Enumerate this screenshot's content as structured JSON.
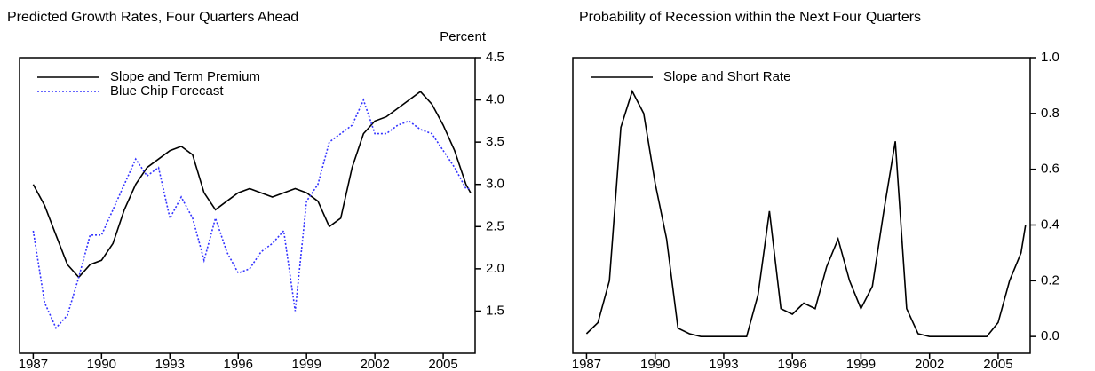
{
  "chart_data": [
    {
      "type": "line",
      "title": "Predicted Growth Rates, Four Quarters Ahead",
      "y_label": "Percent",
      "x": [
        1987.0,
        1987.5,
        1988.0,
        1988.5,
        1989.0,
        1989.5,
        1990.0,
        1990.5,
        1991.0,
        1991.5,
        1992.0,
        1992.5,
        1993.0,
        1993.5,
        1994.0,
        1994.5,
        1995.0,
        1995.5,
        1996.0,
        1996.5,
        1997.0,
        1997.5,
        1998.0,
        1998.5,
        1999.0,
        1999.5,
        2000.0,
        2000.5,
        2001.0,
        2001.5,
        2002.0,
        2002.5,
        2003.0,
        2003.5,
        2004.0,
        2004.5,
        2005.0,
        2005.5,
        2006.0,
        2006.2
      ],
      "series": [
        {
          "name": "Slope and Term Premium",
          "color": "#000000",
          "dash": "solid",
          "values": [
            3.0,
            2.75,
            2.4,
            2.05,
            1.9,
            2.05,
            2.1,
            2.3,
            2.7,
            3.0,
            3.2,
            3.3,
            3.4,
            3.45,
            3.35,
            2.9,
            2.7,
            2.8,
            2.9,
            2.95,
            2.9,
            2.85,
            2.9,
            2.95,
            2.9,
            2.8,
            2.5,
            2.6,
            3.2,
            3.6,
            3.75,
            3.8,
            3.9,
            4.0,
            4.1,
            3.95,
            3.7,
            3.4,
            3.0,
            2.9
          ]
        },
        {
          "name": "Blue Chip Forecast",
          "color": "#3333ff",
          "dash": "dotted",
          "values": [
            2.45,
            1.6,
            1.3,
            1.45,
            1.9,
            2.4,
            2.4,
            2.7,
            3.0,
            3.3,
            3.1,
            3.2,
            2.6,
            2.85,
            2.6,
            2.1,
            2.6,
            2.2,
            1.95,
            2.0,
            2.2,
            2.3,
            2.45,
            1.5,
            2.8,
            3.0,
            3.5,
            3.6,
            3.7,
            4.0,
            3.6,
            3.6,
            3.7,
            3.75,
            3.65,
            3.6,
            3.4,
            3.2,
            2.95,
            2.95
          ]
        }
      ],
      "xlim": [
        1986.4,
        2006.4
      ],
      "xticks": [
        1987,
        1990,
        1993,
        1996,
        1999,
        2002,
        2005
      ],
      "ylim": [
        1.0,
        4.5
      ],
      "yticks": [
        1.5,
        {
          "value": 2.0,
          "label": "2.0"
        },
        2.5,
        {
          "value": 3.0,
          "label": "3.0"
        },
        3.5,
        {
          "value": 4.0,
          "label": "4.0"
        },
        4.5
      ],
      "legend": "upper left"
    },
    {
      "type": "line",
      "title": "Probability of Recession within the Next Four Quarters",
      "x": [
        1987.0,
        1987.5,
        1988.0,
        1988.5,
        1989.0,
        1989.5,
        1990.0,
        1990.5,
        1991.0,
        1991.5,
        1992.0,
        1992.5,
        1993.0,
        1993.5,
        1994.0,
        1994.5,
        1995.0,
        1995.5,
        1996.0,
        1996.5,
        1997.0,
        1997.5,
        1998.0,
        1998.5,
        1999.0,
        1999.5,
        2000.0,
        2000.5,
        2001.0,
        2001.5,
        2002.0,
        2002.5,
        2003.0,
        2003.5,
        2004.0,
        2004.5,
        2005.0,
        2005.5,
        2006.0,
        2006.2
      ],
      "series": [
        {
          "name": "Slope and Short Rate",
          "color": "#000000",
          "dash": "solid",
          "values": [
            0.01,
            0.05,
            0.2,
            0.75,
            0.88,
            0.8,
            0.55,
            0.35,
            0.03,
            0.01,
            0.0,
            0.0,
            0.0,
            0.0,
            0.0,
            0.15,
            0.45,
            0.1,
            0.08,
            0.12,
            0.1,
            0.25,
            0.35,
            0.2,
            0.1,
            0.18,
            0.45,
            0.7,
            0.1,
            0.01,
            0.0,
            0.0,
            0.0,
            0.0,
            0.0,
            0.0,
            0.05,
            0.2,
            0.3,
            0.4
          ]
        }
      ],
      "xlim": [
        1986.4,
        2006.4
      ],
      "xticks": [
        1987,
        1990,
        1993,
        1996,
        1999,
        2002,
        2005
      ],
      "ylim": [
        -0.06,
        1.0
      ],
      "yticks": [
        {
          "value": 0.0,
          "label": "0.0"
        },
        0.2,
        0.4,
        0.6,
        0.8,
        {
          "value": 1.0,
          "label": "1.0"
        }
      ],
      "legend": "upper left"
    }
  ]
}
